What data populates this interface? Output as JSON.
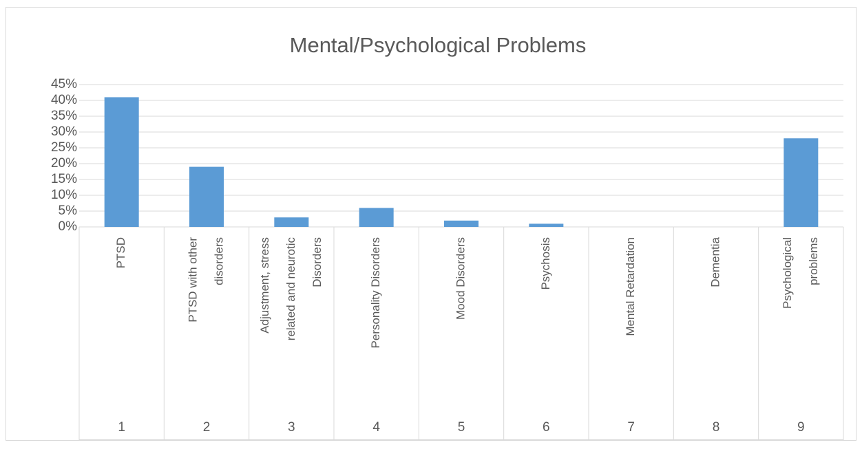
{
  "chart_data": {
    "type": "bar",
    "title": "Mental/Psychological Problems",
    "categories": [
      "1",
      "2",
      "3",
      "4",
      "5",
      "6",
      "7",
      "8",
      "9"
    ],
    "category_names": [
      [
        "PTSD"
      ],
      [
        "PTSD with other",
        "disorders"
      ],
      [
        "Adjustment, stress",
        "related and neurotic",
        "Disorders"
      ],
      [
        "Personality Disorders"
      ],
      [
        "Mood Disorders"
      ],
      [
        "Psychosis"
      ],
      [
        "Mental Retardation"
      ],
      [
        "Dementia"
      ],
      [
        "Psychological",
        "problems"
      ]
    ],
    "values": [
      41,
      19,
      3,
      6,
      2,
      1,
      0,
      0,
      28
    ],
    "color": "#5b9bd5",
    "ylim": [
      0,
      45
    ],
    "yticks": [
      {
        "value": 0,
        "label": "0%"
      },
      {
        "value": 5,
        "label": "5%"
      },
      {
        "value": 10,
        "label": "10%"
      },
      {
        "value": 15,
        "label": "15%"
      },
      {
        "value": 20,
        "label": "20%"
      },
      {
        "value": 25,
        "label": "25%"
      },
      {
        "value": 30,
        "label": "30%"
      },
      {
        "value": 35,
        "label": "35%"
      },
      {
        "value": 40,
        "label": "40%"
      },
      {
        "value": 45,
        "label": "45%"
      }
    ],
    "grid": true
  }
}
